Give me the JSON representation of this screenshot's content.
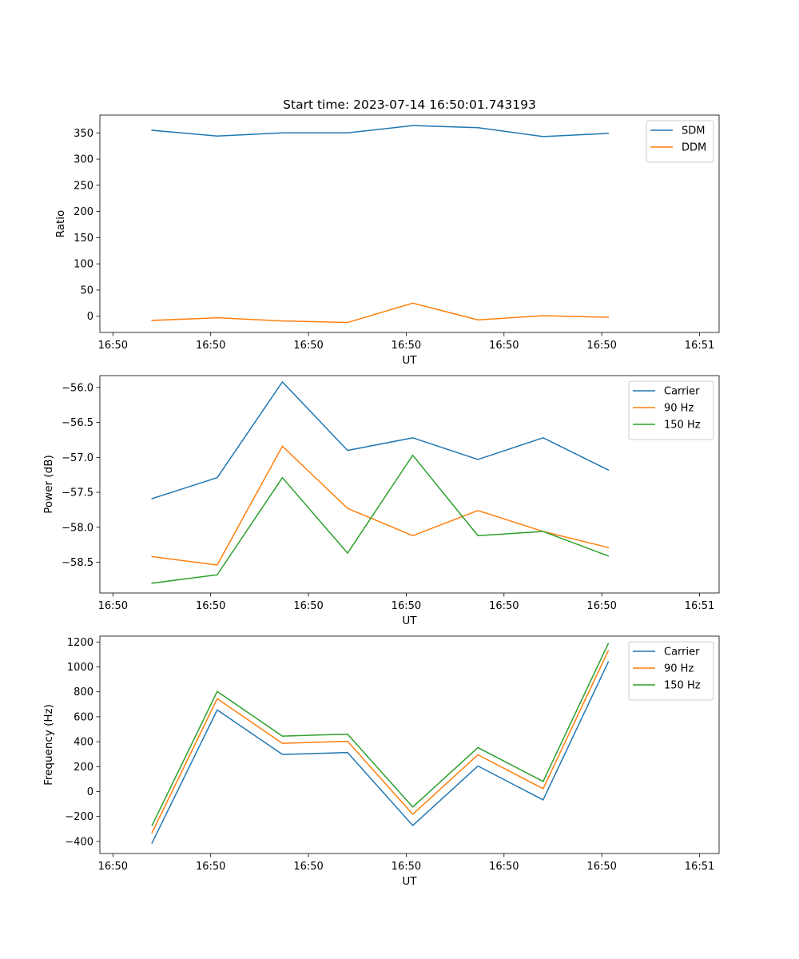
{
  "figure_title": "Start time: 2023-07-14 16:50:01.743193",
  "colors": {
    "blue": "#1f77b4",
    "orange": "#ff7f0e",
    "green": "#2ca02c"
  },
  "chart_data": [
    {
      "type": "line",
      "title": "Start time: 2023-07-14 16:50:01.743193",
      "xlabel": "UT",
      "ylabel": "Ratio",
      "x": [
        0.6,
        1.6,
        2.6,
        3.6,
        4.6,
        5.6,
        6.6,
        7.6
      ],
      "xlim": [
        -0.2,
        9.3
      ],
      "xticks": [
        0,
        1.5,
        3,
        4.5,
        6,
        7.5,
        9
      ],
      "xtick_labels": [
        "16:50",
        "16:50",
        "16:50",
        "16:50",
        "16:50",
        "16:50",
        "16:51"
      ],
      "ylim": [
        -31,
        384
      ],
      "yticks": [
        0,
        50,
        100,
        150,
        200,
        250,
        300,
        350
      ],
      "ytick_labels": [
        "0",
        "50",
        "100",
        "150",
        "200",
        "250",
        "300",
        "350"
      ],
      "legend_position": "top-right",
      "series": [
        {
          "name": "SDM",
          "color": "#1f77b4",
          "values": [
            355,
            344,
            350,
            350,
            364,
            360,
            343,
            349
          ]
        },
        {
          "name": "DDM",
          "color": "#ff7f0e",
          "values": [
            -8,
            -3,
            -9,
            -12,
            25,
            -7,
            1,
            -2
          ]
        }
      ]
    },
    {
      "type": "line",
      "title": "",
      "xlabel": "UT",
      "ylabel": "Power (dB)",
      "x": [
        0.6,
        1.6,
        2.6,
        3.6,
        4.6,
        5.6,
        6.6,
        7.6
      ],
      "xlim": [
        -0.2,
        9.3
      ],
      "xticks": [
        0,
        1.5,
        3,
        4.5,
        6,
        7.5,
        9
      ],
      "xtick_labels": [
        "16:50",
        "16:50",
        "16:50",
        "16:50",
        "16:50",
        "16:50",
        "16:51"
      ],
      "ylim": [
        -58.94,
        -55.83
      ],
      "yticks": [
        -58.5,
        -58.0,
        -57.5,
        -57.0,
        -56.5,
        -56.0
      ],
      "ytick_labels": [
        "−58.5",
        "−58.0",
        "−57.5",
        "−57.0",
        "−56.5",
        "−56.0"
      ],
      "legend_position": "top-right",
      "series": [
        {
          "name": "Carrier",
          "color": "#1f77b4",
          "values": [
            -57.59,
            -57.29,
            -55.92,
            -56.9,
            -56.72,
            -57.03,
            -56.72,
            -57.18
          ]
        },
        {
          "name": "90 Hz",
          "color": "#ff7f0e",
          "values": [
            -58.42,
            -58.54,
            -56.84,
            -57.73,
            -58.12,
            -57.76,
            -58.06,
            -58.29
          ]
        },
        {
          "name": "150 Hz",
          "color": "#2ca02c",
          "values": [
            -58.8,
            -58.68,
            -57.29,
            -58.37,
            -56.97,
            -58.12,
            -58.06,
            -58.41
          ]
        }
      ]
    },
    {
      "type": "line",
      "title": "",
      "xlabel": "UT",
      "ylabel": "Frequency (Hz)",
      "x": [
        0.6,
        1.6,
        2.6,
        3.6,
        4.6,
        5.6,
        6.6,
        7.6
      ],
      "xlim": [
        -0.2,
        9.3
      ],
      "xticks": [
        0,
        1.5,
        3,
        4.5,
        6,
        7.5,
        9
      ],
      "xtick_labels": [
        "16:50",
        "16:50",
        "16:50",
        "16:50",
        "16:50",
        "16:50",
        "16:51"
      ],
      "ylim": [
        -497,
        1247
      ],
      "yticks": [
        -400,
        -200,
        0,
        200,
        400,
        600,
        800,
        1000,
        1200
      ],
      "ytick_labels": [
        "−400",
        "−200",
        "0",
        "200",
        "400",
        "600",
        "800",
        "1000",
        "1200"
      ],
      "legend_position": "top-right",
      "series": [
        {
          "name": "Carrier",
          "color": "#1f77b4",
          "values": [
            -413,
            655,
            298,
            313,
            -272,
            205,
            -67,
            1040
          ]
        },
        {
          "name": "90 Hz",
          "color": "#ff7f0e",
          "values": [
            -330,
            745,
            387,
            403,
            -182,
            295,
            23,
            1130
          ]
        },
        {
          "name": "150 Hz",
          "color": "#2ca02c",
          "values": [
            -272,
            803,
            445,
            461,
            -124,
            353,
            81,
            1188
          ]
        }
      ]
    }
  ]
}
